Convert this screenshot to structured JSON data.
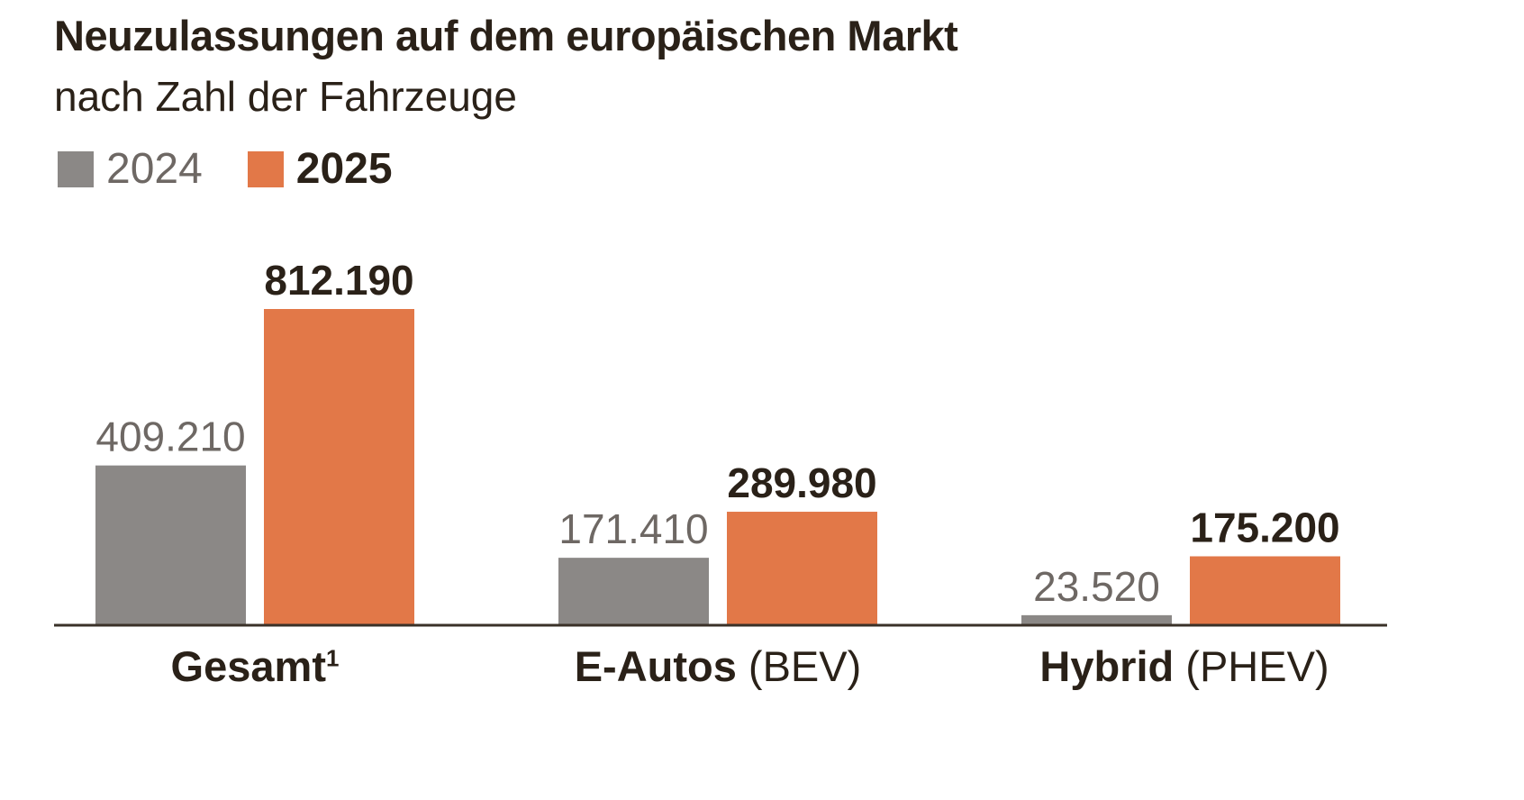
{
  "chart_data": {
    "type": "bar",
    "title": "Neuzulassungen auf dem europäischen Markt",
    "subtitle": "nach Zahl der Fahrzeuge",
    "categories": [
      {
        "main": "Gesamt",
        "sup": "1",
        "suffix": ""
      },
      {
        "main": "E-Autos",
        "sup": "",
        "suffix": " (BEV)"
      },
      {
        "main": "Hybrid",
        "sup": "",
        "suffix": " (PHEV)"
      }
    ],
    "series": [
      {
        "name": "2024",
        "color": "#8b8886",
        "values": [
          409210,
          171410,
          23520
        ],
        "labels": [
          "409.210",
          "171.410",
          "23.520"
        ]
      },
      {
        "name": "2025",
        "color": "#e27848",
        "values": [
          812190,
          289980,
          175200
        ],
        "labels": [
          "812.190",
          "289.980",
          "175.200"
        ]
      }
    ],
    "xlabel": "",
    "ylabel": "",
    "ylim": [
      0,
      812190
    ],
    "grid": false,
    "legend": "top-left"
  }
}
